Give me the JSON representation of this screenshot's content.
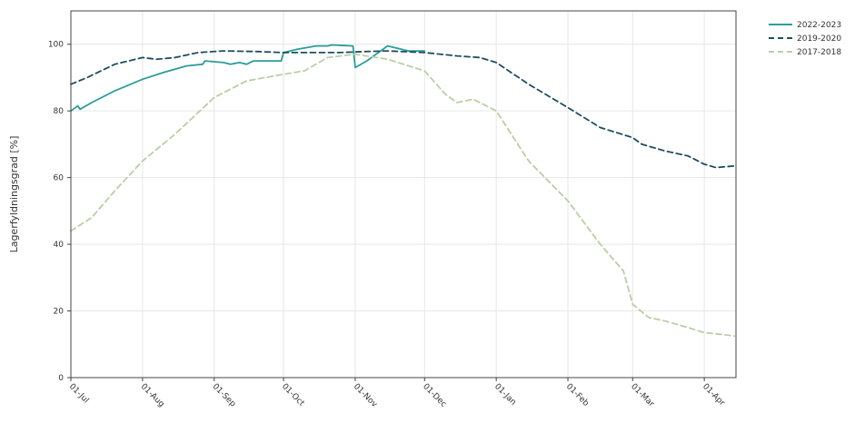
{
  "chart_data": {
    "type": "line",
    "title": "",
    "xlabel": "",
    "ylabel": "Lagerfyldningsgrad [%]",
    "ylim": [
      0,
      110
    ],
    "yticks": [
      0,
      20,
      40,
      60,
      80,
      100
    ],
    "grid": true,
    "legend_position": "top-right",
    "x_tick_labels": [
      "01-Jul",
      "01-Aug",
      "01-Sep",
      "01-Oct",
      "01-Nov",
      "01-Dec",
      "01-Jan",
      "01-Feb",
      "01-Mar",
      "01-Apr"
    ],
    "series": [
      {
        "name": "2022-2023",
        "color": "#2a9d9a",
        "dash": "solid",
        "points": [
          [
            "01-Jul",
            80
          ],
          [
            "04-Jul",
            81.5
          ],
          [
            "05-Jul",
            80.5
          ],
          [
            "10-Jul",
            82.5
          ],
          [
            "20-Jul",
            86
          ],
          [
            "01-Aug",
            89.5
          ],
          [
            "10-Aug",
            91.5
          ],
          [
            "20-Aug",
            93.5
          ],
          [
            "27-Aug",
            94
          ],
          [
            "28-Aug",
            95
          ],
          [
            "05-Sep",
            94.5
          ],
          [
            "08-Sep",
            94
          ],
          [
            "12-Sep",
            94.5
          ],
          [
            "15-Sep",
            94
          ],
          [
            "18-Sep",
            95
          ],
          [
            "30-Sep",
            95
          ],
          [
            "01-Oct",
            97.5
          ],
          [
            "07-Oct",
            98.5
          ],
          [
            "15-Oct",
            99.5
          ],
          [
            "20-Oct",
            99.5
          ],
          [
            "22-Oct",
            99.8
          ],
          [
            "31-Oct",
            99.5
          ],
          [
            "01-Nov",
            93
          ],
          [
            "06-Nov",
            95
          ],
          [
            "12-Nov",
            98
          ],
          [
            "15-Nov",
            99.5
          ],
          [
            "21-Nov",
            98.5
          ],
          [
            "24-Nov",
            98
          ],
          [
            "01-Dec",
            98
          ]
        ]
      },
      {
        "name": "2019-2020",
        "color": "#1e4e5f",
        "dash": "dashed",
        "points": [
          [
            "01-Jul",
            88
          ],
          [
            "08-Jul",
            90
          ],
          [
            "20-Jul",
            94
          ],
          [
            "01-Aug",
            96
          ],
          [
            "07-Aug",
            95.5
          ],
          [
            "15-Aug",
            96
          ],
          [
            "25-Aug",
            97.5
          ],
          [
            "05-Sep",
            98
          ],
          [
            "20-Sep",
            97.8
          ],
          [
            "01-Oct",
            97.5
          ],
          [
            "12-Oct",
            97.5
          ],
          [
            "25-Oct",
            97.5
          ],
          [
            "05-Nov",
            97.8
          ],
          [
            "15-Nov",
            98
          ],
          [
            "01-Dec",
            97.5
          ],
          [
            "15-Dec",
            96.5
          ],
          [
            "25-Dec",
            96
          ],
          [
            "01-Jan",
            94.5
          ],
          [
            "15-Jan",
            88
          ],
          [
            "01-Feb",
            81
          ],
          [
            "15-Feb",
            75
          ],
          [
            "01-Mar",
            72
          ],
          [
            "05-Mar",
            70
          ],
          [
            "15-Mar",
            68
          ],
          [
            "25-Mar",
            66.5
          ],
          [
            "01-Apr",
            64
          ],
          [
            "06-Apr",
            63
          ],
          [
            "14-Apr",
            63.5
          ]
        ]
      },
      {
        "name": "2017-2018",
        "color": "#b9cfa5",
        "dash": "dashed",
        "points": [
          [
            "01-Jul",
            44
          ],
          [
            "10-Jul",
            48
          ],
          [
            "20-Jul",
            56
          ],
          [
            "01-Aug",
            65
          ],
          [
            "15-Aug",
            73
          ],
          [
            "01-Sep",
            84
          ],
          [
            "15-Sep",
            89
          ],
          [
            "01-Oct",
            91
          ],
          [
            "10-Oct",
            92
          ],
          [
            "20-Oct",
            96
          ],
          [
            "01-Nov",
            97
          ],
          [
            "15-Nov",
            95.5
          ],
          [
            "01-Dec",
            92
          ],
          [
            "10-Dec",
            85
          ],
          [
            "15-Dec",
            82.5
          ],
          [
            "22-Dec",
            83.5
          ],
          [
            "01-Jan",
            80
          ],
          [
            "15-Jan",
            65
          ],
          [
            "01-Feb",
            53
          ],
          [
            "15-Feb",
            40
          ],
          [
            "25-Feb",
            32
          ],
          [
            "01-Mar",
            22
          ],
          [
            "08-Mar",
            18
          ],
          [
            "15-Mar",
            17
          ],
          [
            "25-Mar",
            15
          ],
          [
            "01-Apr",
            13.5
          ],
          [
            "08-Apr",
            13
          ],
          [
            "14-Apr",
            12.5
          ]
        ]
      }
    ]
  }
}
